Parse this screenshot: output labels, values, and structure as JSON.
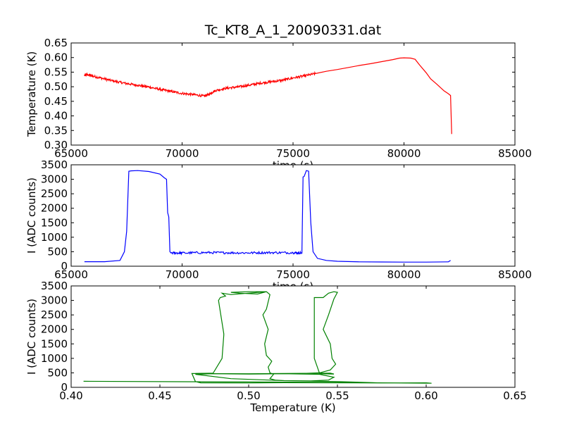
{
  "figure": {
    "title": "Tc_KT8_A_1_20090331.dat"
  },
  "chart_data": [
    {
      "type": "line",
      "xlabel": "time (s)",
      "ylabel": "Temperature (K)",
      "xlim": [
        65000,
        85000
      ],
      "ylim": [
        0.3,
        0.65
      ],
      "xticks": [
        "65000",
        "70000",
        "75000",
        "80000",
        "85000"
      ],
      "yticks": [
        "0.30",
        "0.35",
        "0.40",
        "0.45",
        "0.50",
        "0.55",
        "0.60",
        "0.65"
      ],
      "grid": false,
      "series": [
        {
          "color": "#ff0000",
          "noise": 0.004,
          "x": [
            65600,
            65700,
            66000,
            66500,
            67000,
            67500,
            68000,
            68500,
            69000,
            69500,
            70000,
            70500,
            71000,
            71200,
            71500,
            72000,
            72500,
            73000,
            73500,
            74000,
            74500,
            75000,
            75500,
            76000,
            76500,
            77000,
            77500,
            78000,
            78500,
            79000,
            79500,
            79800,
            80000,
            80300,
            80500,
            80700,
            81000,
            81200,
            81500,
            81800,
            82000,
            82100,
            82150
          ],
          "y": [
            0.538,
            0.542,
            0.536,
            0.527,
            0.518,
            0.511,
            0.505,
            0.499,
            0.491,
            0.484,
            0.477,
            0.473,
            0.468,
            0.474,
            0.487,
            0.495,
            0.499,
            0.505,
            0.512,
            0.517,
            0.522,
            0.53,
            0.537,
            0.545,
            0.553,
            0.559,
            0.566,
            0.573,
            0.579,
            0.586,
            0.593,
            0.598,
            0.599,
            0.598,
            0.594,
            0.575,
            0.548,
            0.527,
            0.507,
            0.486,
            0.476,
            0.47,
            0.338
          ],
          "noise_until": 76000
        }
      ]
    },
    {
      "type": "line",
      "xlabel": "time (s)",
      "ylabel": "I (ADC counts)",
      "xlim": [
        65000,
        85000
      ],
      "ylim": [
        0,
        3500
      ],
      "xticks": [
        "65000",
        "70000",
        "75000",
        "80000",
        "85000"
      ],
      "yticks": [
        "0",
        "500",
        "1000",
        "1500",
        "2000",
        "2500",
        "3000",
        "3500"
      ],
      "grid": false,
      "series": [
        {
          "color": "#0000ff",
          "x": [
            65600,
            66500,
            67200,
            67400,
            67500,
            67600,
            67700,
            68000,
            68500,
            69000,
            69200,
            69300,
            69350,
            69400,
            69450,
            69500,
            70000,
            71000,
            72000,
            73000,
            74000,
            75000,
            75400,
            75450,
            75500,
            75600,
            75700,
            75800,
            75900,
            76100,
            76500,
            77000,
            78000,
            79000,
            80000,
            81000,
            82000,
            82100
          ],
          "y": [
            155,
            155,
            200,
            500,
            1200,
            3280,
            3290,
            3300,
            3270,
            3180,
            3050,
            3000,
            1850,
            1700,
            500,
            460,
            455,
            470,
            465,
            460,
            470,
            465,
            460,
            3080,
            3100,
            3300,
            3280,
            1500,
            500,
            270,
            200,
            170,
            150,
            145,
            140,
            140,
            150,
            200
          ],
          "noise_from": 69500,
          "noise_to": 75400,
          "noise": 40
        }
      ]
    },
    {
      "type": "line",
      "xlabel": "Temperature (K)",
      "ylabel": "I (ADC counts)",
      "xlim": [
        0.4,
        0.65
      ],
      "ylim": [
        0,
        3500
      ],
      "xticks": [
        "0.40",
        "0.45",
        "0.50",
        "0.55",
        "0.60",
        "0.65"
      ],
      "yticks": [
        "0",
        "500",
        "1000",
        "1500",
        "2000",
        "2500",
        "3000",
        "3500"
      ],
      "grid": false,
      "series": [
        {
          "color": "#008000",
          "x": [
            0.407,
            0.52,
            0.603,
            0.6,
            0.575,
            0.52,
            0.5,
            0.473,
            0.47,
            0.468,
            0.5,
            0.546,
            0.548,
            0.54,
            0.537,
            0.537,
            0.542,
            0.545,
            0.548,
            0.55,
            0.548,
            0.545,
            0.542,
            0.546,
            0.547,
            0.549,
            0.546,
            0.54,
            0.53,
            0.52,
            0.5,
            0.48,
            0.47,
            0.48,
            0.485,
            0.486,
            0.486,
            0.483,
            0.484,
            0.487,
            0.485,
            0.49,
            0.51,
            0.5,
            0.49,
            0.495,
            0.505,
            0.51,
            0.512,
            0.51,
            0.508,
            0.511,
            0.509,
            0.51,
            0.513,
            0.511,
            0.512,
            0.514,
            0.512,
            0.515,
            0.52,
            0.535,
            0.545,
            0.548,
            0.54,
            0.52,
            0.5,
            0.48,
            0.47,
            0.49,
            0.52,
            0.55,
            0.57,
            0.575
          ],
          "y": [
            210,
            180,
            140,
            155,
            150,
            160,
            150,
            155,
            200,
            480,
            470,
            490,
            460,
            470,
            1000,
            3100,
            3100,
            3250,
            3300,
            3280,
            3050,
            2500,
            2000,
            1500,
            1000,
            800,
            600,
            500,
            480,
            470,
            460,
            470,
            480,
            490,
            1000,
            1800,
            1850,
            3000,
            3100,
            3150,
            3250,
            3200,
            3300,
            3300,
            3280,
            3250,
            3220,
            3300,
            3200,
            2700,
            2500,
            2000,
            1500,
            1100,
            900,
            700,
            500,
            450,
            300,
            250,
            230,
            220,
            250,
            350,
            450,
            470,
            460,
            470,
            450,
            300,
            230,
            200,
            160,
            150
          ]
        }
      ]
    }
  ]
}
